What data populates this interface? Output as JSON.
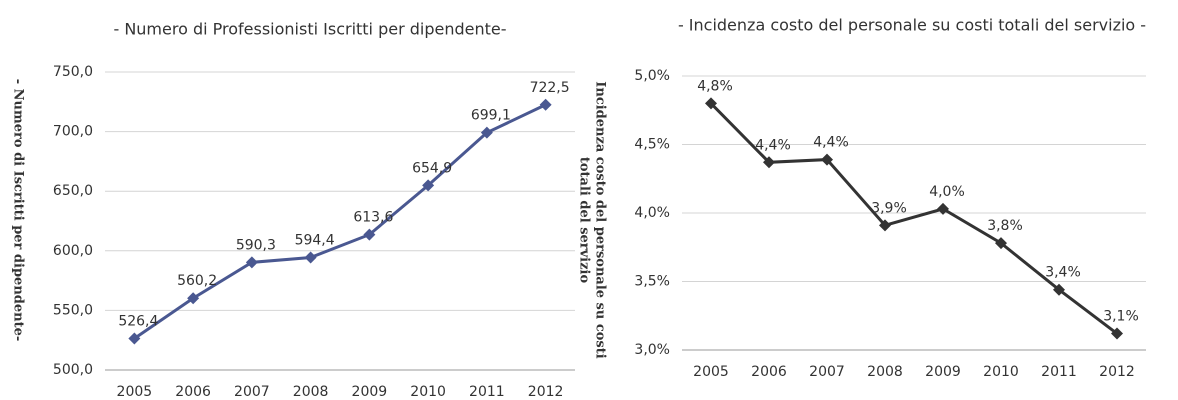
{
  "chart_data": [
    {
      "type": "line",
      "title": "- Numero di Professionisti Iscritti per dipendente-",
      "ylabel": [
        "- Numero di Iscritti per dipendente-"
      ],
      "categories": [
        "2005",
        "2006",
        "2007",
        "2008",
        "2009",
        "2010",
        "2011",
        "2012"
      ],
      "values": [
        526.4,
        560.2,
        590.3,
        594.4,
        613.6,
        654.9,
        699.1,
        722.5
      ],
      "value_labels": [
        "526,4",
        "560,2",
        "590,3",
        "594,4",
        "613,6",
        "654,9",
        "699,1",
        "722,5"
      ],
      "color": "#4a5891",
      "ylim": [
        500,
        750
      ],
      "yticks": [
        {
          "value": 500,
          "label": "500,0"
        },
        {
          "value": 550,
          "label": "550,0"
        },
        {
          "value": 600,
          "label": "600,0"
        },
        {
          "value": 650,
          "label": "650,0"
        },
        {
          "value": 700,
          "label": "700,0"
        },
        {
          "value": 750,
          "label": "750,0"
        }
      ],
      "grid": true
    },
    {
      "type": "line",
      "title": "- Incidenza costo del personale su costi totali del servizio -",
      "ylabel": [
        "Incidenza costo del personale su costi",
        "totali del servizio"
      ],
      "categories": [
        "2005",
        "2006",
        "2007",
        "2008",
        "2009",
        "2010",
        "2011",
        "2012"
      ],
      "values": [
        4.8,
        4.37,
        4.39,
        3.91,
        4.03,
        3.78,
        3.44,
        3.12
      ],
      "value_labels": [
        "4,8%",
        "4,4%",
        "4,4%",
        "3,9%",
        "4,0%",
        "3,8%",
        "3,4%",
        "3,1%"
      ],
      "color": "#333333",
      "ylim": [
        3,
        5
      ],
      "yticks": [
        {
          "value": 3,
          "label": "3,0%"
        },
        {
          "value": 3.5,
          "label": "3,5%"
        },
        {
          "value": 4,
          "label": "4,0%"
        },
        {
          "value": 4.5,
          "label": "4,5%"
        },
        {
          "value": 5,
          "label": "5,0%"
        }
      ],
      "grid": true
    }
  ]
}
